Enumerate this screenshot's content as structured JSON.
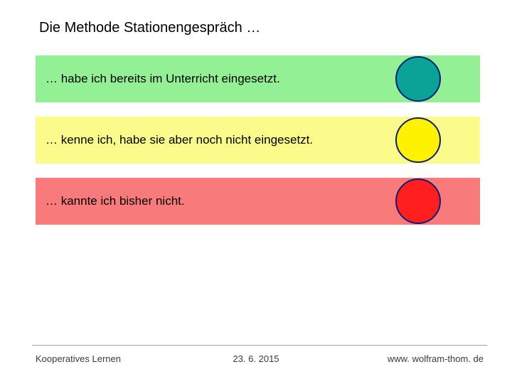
{
  "title": "Die Methode Stationengespräch …",
  "rows": [
    {
      "text": "… habe ich bereits im Unterricht eingesetzt.",
      "bg_color": "#93f094",
      "circle_fill": "#0aa396",
      "circle_border": "#0b1f7a"
    },
    {
      "text": "… kenne ich, habe sie aber noch nicht eingesetzt.",
      "bg_color": "#fbfb8b",
      "circle_fill": "#fff200",
      "circle_border": "#0b1f7a"
    },
    {
      "text": "… kannte ich bisher nicht.",
      "bg_color": "#f97a7b",
      "circle_fill": "#ff1f1f",
      "circle_border": "#0b1f7a"
    }
  ],
  "footer": {
    "left": "Kooperatives Lernen",
    "center": "23. 6. 2015",
    "right": "www. wolfram-thom. de"
  },
  "background_color": "#ffffff"
}
